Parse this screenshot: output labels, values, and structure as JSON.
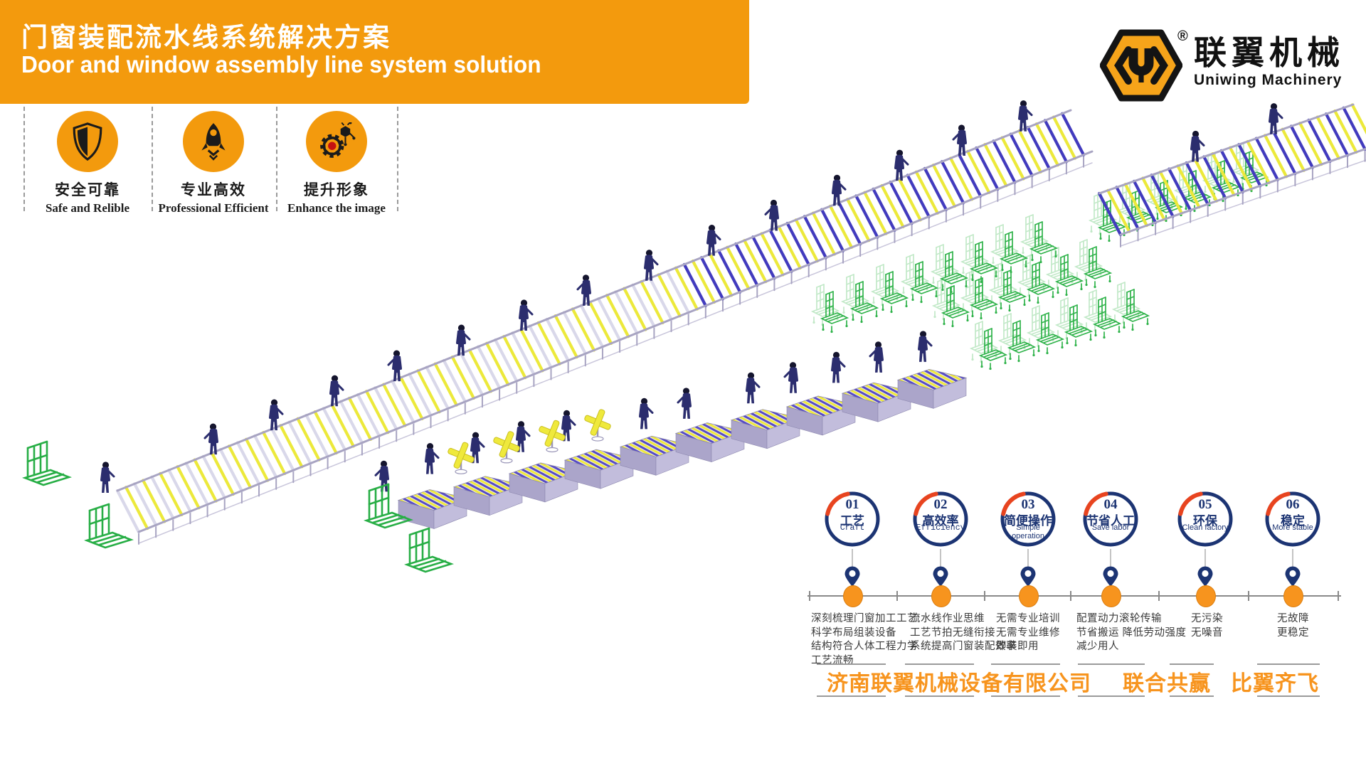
{
  "banner": {
    "title_zh": "门窗装配流水线系统解决方案",
    "title_en": "Door and window assembly line system solution"
  },
  "logo": {
    "brand_zh": "联翼机械",
    "brand_en": "Uniwing Machinery",
    "registered": "®"
  },
  "features": [
    {
      "icon": "shield-icon",
      "label_zh": "安全可靠",
      "label_en": "Safe and Relible"
    },
    {
      "icon": "rocket-icon",
      "label_zh": "专业高效",
      "label_en": "Professional Efficient"
    },
    {
      "icon": "gear-network-icon",
      "label_zh": "提升形象",
      "label_en": "Enhance the image"
    }
  ],
  "benefits": [
    {
      "number": "01",
      "label_zh": "工艺",
      "label_en": "Craft",
      "details": [
        "深刻梳理门窗加工工艺",
        "科学布局组装设备",
        "结构符合人体工程力学",
        "工艺流畅"
      ]
    },
    {
      "number": "02",
      "label_zh": "高效率",
      "label_en": "Efficiency",
      "details": [
        "流水线作业思维",
        "工艺节拍无缝衔接",
        "系统提高门窗装配效率"
      ]
    },
    {
      "number": "03",
      "label_zh": "简便操作",
      "label_en": "Simple operation",
      "details": [
        "无需专业培训",
        "无需专业维修",
        "即装即用"
      ]
    },
    {
      "number": "04",
      "label_zh": "节省人工",
      "label_en": "Save labor",
      "details": [
        "配置动力滚轮传输",
        "节省搬运 降低劳动强度",
        "减少用人"
      ]
    },
    {
      "number": "05",
      "label_zh": "环保",
      "label_en": "Clean factory",
      "details": [
        "无污染",
        "无噪音"
      ]
    },
    {
      "number": "06",
      "label_zh": "稳定",
      "label_en": "More stable",
      "details": [
        "无故障",
        "更稳定"
      ]
    }
  ],
  "footer": {
    "company": "济南联翼机械设备有限公司",
    "slogan_1": "联合共赢",
    "slogan_2": "比翼齐飞"
  },
  "colors": {
    "banner_orange": "#F39A0D",
    "footer_orange": "#F7941E",
    "ring_navy": "#1C3473",
    "arc_red": "#E8441F",
    "rack_green": "#2FB34A",
    "roller_yellow": "#ECE93B",
    "roller_blue": "#423BBE",
    "conveyor_lavender": "#C2BDDC"
  }
}
